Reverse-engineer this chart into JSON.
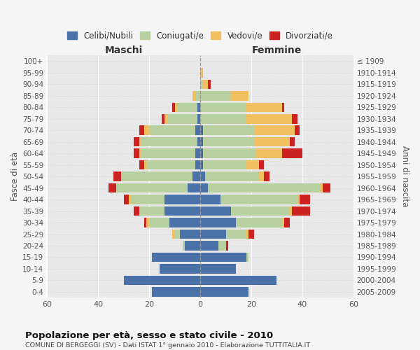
{
  "age_groups": [
    "0-4",
    "5-9",
    "10-14",
    "15-19",
    "20-24",
    "25-29",
    "30-34",
    "35-39",
    "40-44",
    "45-49",
    "50-54",
    "55-59",
    "60-64",
    "65-69",
    "70-74",
    "75-79",
    "80-84",
    "85-89",
    "90-94",
    "95-99",
    "100+"
  ],
  "birth_years": [
    "2005-2009",
    "2000-2004",
    "1995-1999",
    "1990-1994",
    "1985-1989",
    "1980-1984",
    "1975-1979",
    "1970-1974",
    "1965-1969",
    "1960-1964",
    "1955-1959",
    "1950-1954",
    "1945-1949",
    "1940-1944",
    "1935-1939",
    "1930-1934",
    "1925-1929",
    "1920-1924",
    "1915-1919",
    "1910-1914",
    "≤ 1909"
  ],
  "colors": {
    "celibe": "#4a72a8",
    "coniugato": "#b8cfa0",
    "vedovo": "#f0c060",
    "divorziato": "#cc2222"
  },
  "males": {
    "celibe": [
      19,
      30,
      16,
      19,
      6,
      8,
      12,
      14,
      14,
      5,
      3,
      2,
      2,
      1,
      2,
      1,
      1,
      0,
      0,
      0,
      0
    ],
    "coniugato": [
      0,
      0,
      0,
      0,
      1,
      2,
      8,
      10,
      13,
      28,
      28,
      19,
      21,
      22,
      18,
      12,
      8,
      2,
      0,
      0,
      0
    ],
    "vedovo": [
      0,
      0,
      0,
      0,
      0,
      1,
      1,
      0,
      1,
      0,
      0,
      1,
      1,
      1,
      2,
      1,
      1,
      1,
      0,
      0,
      0
    ],
    "divorziato": [
      0,
      0,
      0,
      0,
      0,
      0,
      1,
      2,
      2,
      3,
      3,
      2,
      2,
      2,
      2,
      1,
      1,
      0,
      0,
      0,
      0
    ]
  },
  "females": {
    "nubile": [
      19,
      30,
      14,
      18,
      7,
      10,
      14,
      12,
      8,
      3,
      2,
      1,
      1,
      1,
      1,
      0,
      0,
      0,
      0,
      0,
      0
    ],
    "coniugata": [
      0,
      0,
      0,
      1,
      3,
      8,
      18,
      23,
      30,
      44,
      21,
      17,
      21,
      20,
      20,
      18,
      18,
      12,
      1,
      0,
      0
    ],
    "vedova": [
      0,
      0,
      0,
      0,
      0,
      1,
      1,
      1,
      1,
      1,
      2,
      5,
      10,
      14,
      16,
      18,
      14,
      7,
      2,
      1,
      0
    ],
    "divorziata": [
      0,
      0,
      0,
      0,
      1,
      2,
      2,
      7,
      4,
      3,
      2,
      2,
      8,
      2,
      2,
      2,
      1,
      0,
      1,
      0,
      0
    ]
  },
  "xlim": 60,
  "title": "Popolazione per età, sesso e stato civile - 2010",
  "subtitle": "COMUNE DI BERGEGGI (SV) - Dati ISTAT 1° gennaio 2010 - Elaborazione TUTTITALIA.IT",
  "xlabel_left": "Maschi",
  "xlabel_right": "Femmine",
  "ylabel_left": "Fasce di età",
  "ylabel_right": "Anni di nascita",
  "legend_labels": [
    "Celibi/Nubili",
    "Coniugati/e",
    "Vedovi/e",
    "Divorziati/e"
  ],
  "background_color": "#f5f5f5",
  "plot_bg_color": "#e8e8e8"
}
